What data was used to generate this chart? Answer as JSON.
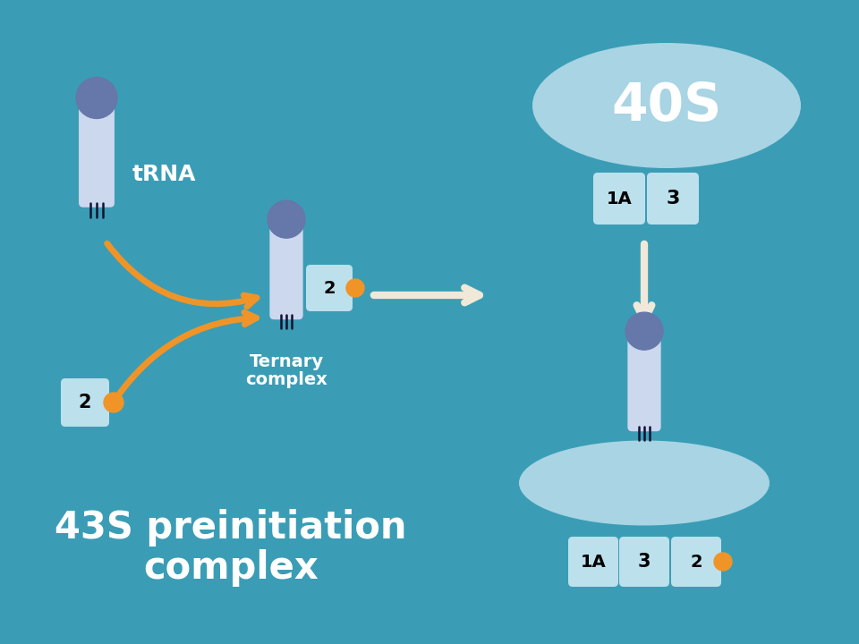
{
  "bg_color": "#3a9db5",
  "head_color": "#6677aa",
  "body_color": "#ccd8ee",
  "box_color": "#bde0ed",
  "orange_color": "#f09428",
  "arrow_orange": "#f09428",
  "arrow_cream": "#f0e8d8",
  "ellipse_color": "#a8d4e4",
  "trna_label": "tRNA",
  "ternary_label1": "Ternary",
  "ternary_label2": "complex",
  "s40_label": "40S",
  "title_line1": "43S preinitiation",
  "title_line2": "complex",
  "title_fontsize": 30,
  "title_color": "white"
}
